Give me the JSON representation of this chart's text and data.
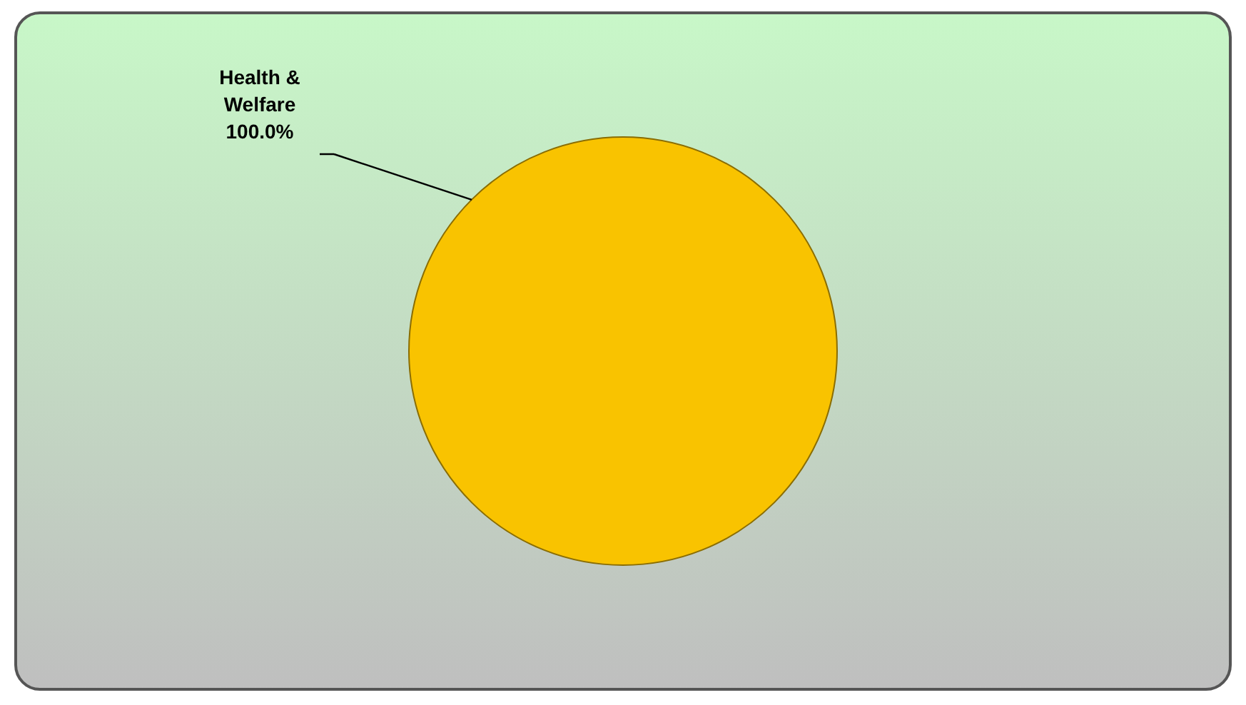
{
  "chart_data": {
    "type": "pie",
    "categories": [
      "Health & Welfare"
    ],
    "values": [
      100
    ],
    "colors": [
      "#f9c300"
    ],
    "value_labels": [
      "100.0%"
    ]
  }
}
